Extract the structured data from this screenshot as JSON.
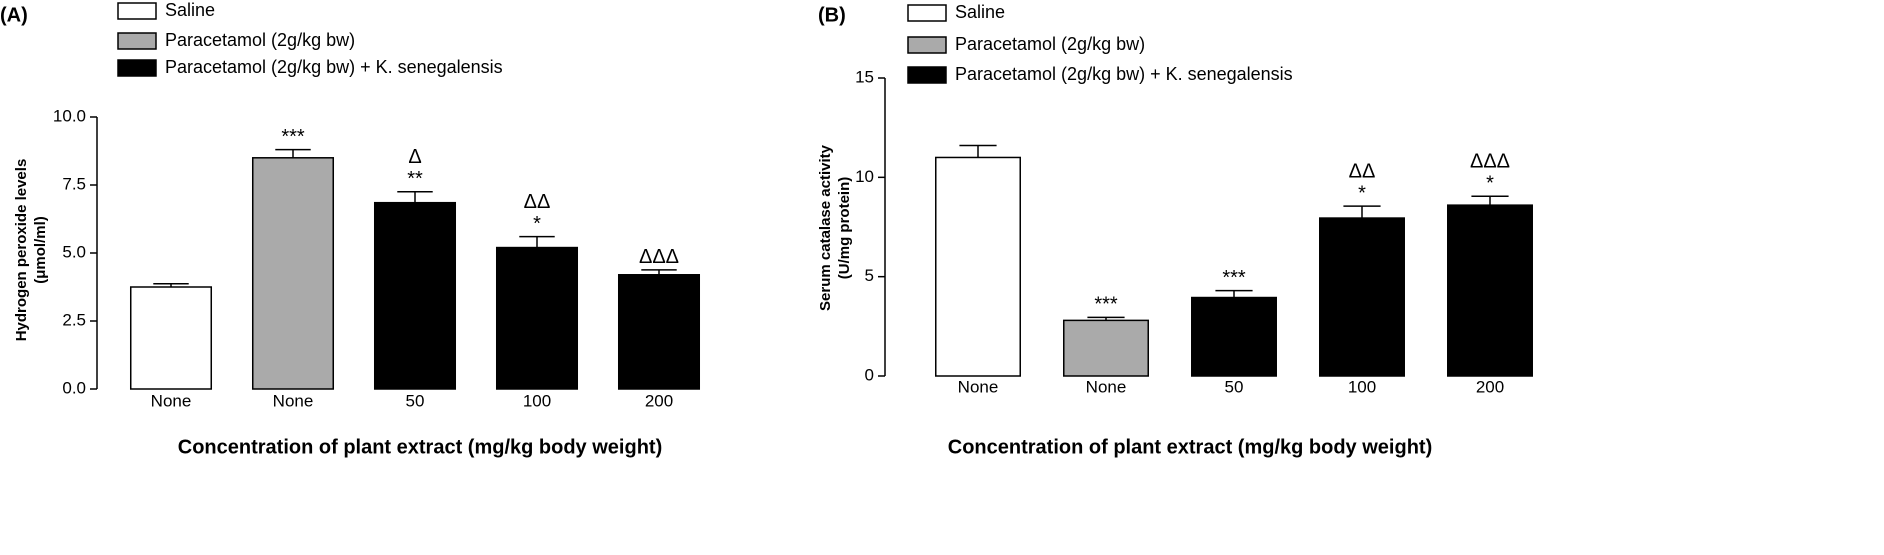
{
  "chart_data": [
    {
      "type": "bar",
      "panel": "(A)",
      "ylabel": [
        "Hydrogen peroxide levels",
        "(μmol/ml)"
      ],
      "xlabel": "Concentration of plant extract (mg/kg body weight)",
      "categories": [
        "None",
        "None",
        "50",
        "100",
        "200"
      ],
      "series": [
        {
          "name": "Saline",
          "color": "#ffffff",
          "values": [
            3.75,
            null,
            null,
            null,
            null
          ],
          "errors": [
            0.12,
            null,
            null,
            null,
            null
          ]
        },
        {
          "name": "Paracetamol (2g/kg bw)",
          "color": "#aaaaaa",
          "values": [
            null,
            8.5,
            null,
            null,
            null
          ],
          "errors": [
            null,
            0.3,
            null,
            null,
            null
          ]
        },
        {
          "name": "Paracetamol (2g/kg bw) + K. senegalensis",
          "color": "#000000",
          "values": [
            null,
            null,
            6.85,
            5.2,
            4.2
          ],
          "errors": [
            null,
            null,
            0.4,
            0.4,
            0.18
          ]
        }
      ],
      "annotations": [
        [],
        [
          "***"
        ],
        [
          "Δ",
          "**"
        ],
        [
          "ΔΔ",
          "*"
        ],
        [
          "ΔΔΔ"
        ]
      ],
      "ylim": [
        0,
        10
      ],
      "yticks": [
        {
          "value": 0,
          "label": "0.0"
        },
        2.5,
        {
          "value": 5,
          "label": "5.0"
        },
        7.5,
        {
          "value": 10,
          "label": "10.0"
        }
      ]
    },
    {
      "type": "bar",
      "panel": "(B)",
      "ylabel": [
        "Serum catalase activity",
        "(U/mg protein)"
      ],
      "xlabel": "Concentration of plant extract (mg/kg body weight)",
      "categories": [
        "None",
        "None",
        "50",
        "100",
        "200"
      ],
      "series": [
        {
          "name": "Saline",
          "color": "#ffffff",
          "values": [
            11,
            null,
            null,
            null,
            null
          ],
          "errors": [
            0.6,
            null,
            null,
            null,
            null
          ]
        },
        {
          "name": "Paracetamol (2g/kg bw)",
          "color": "#aaaaaa",
          "values": [
            null,
            2.8,
            null,
            null,
            null
          ],
          "errors": [
            null,
            0.15,
            null,
            null,
            null
          ]
        },
        {
          "name": "Paracetamol (2g/kg bw) + K. senegalensis",
          "color": "#000000",
          "values": [
            null,
            null,
            3.95,
            7.95,
            8.6
          ],
          "errors": [
            null,
            null,
            0.35,
            0.6,
            0.45
          ]
        }
      ],
      "annotations": [
        [],
        [
          "***"
        ],
        [
          "***"
        ],
        [
          "ΔΔ",
          "*"
        ],
        [
          "ΔΔΔ",
          "*"
        ]
      ],
      "ylim": [
        0,
        15
      ],
      "yticks": [
        0,
        5,
        10,
        15
      ]
    }
  ]
}
